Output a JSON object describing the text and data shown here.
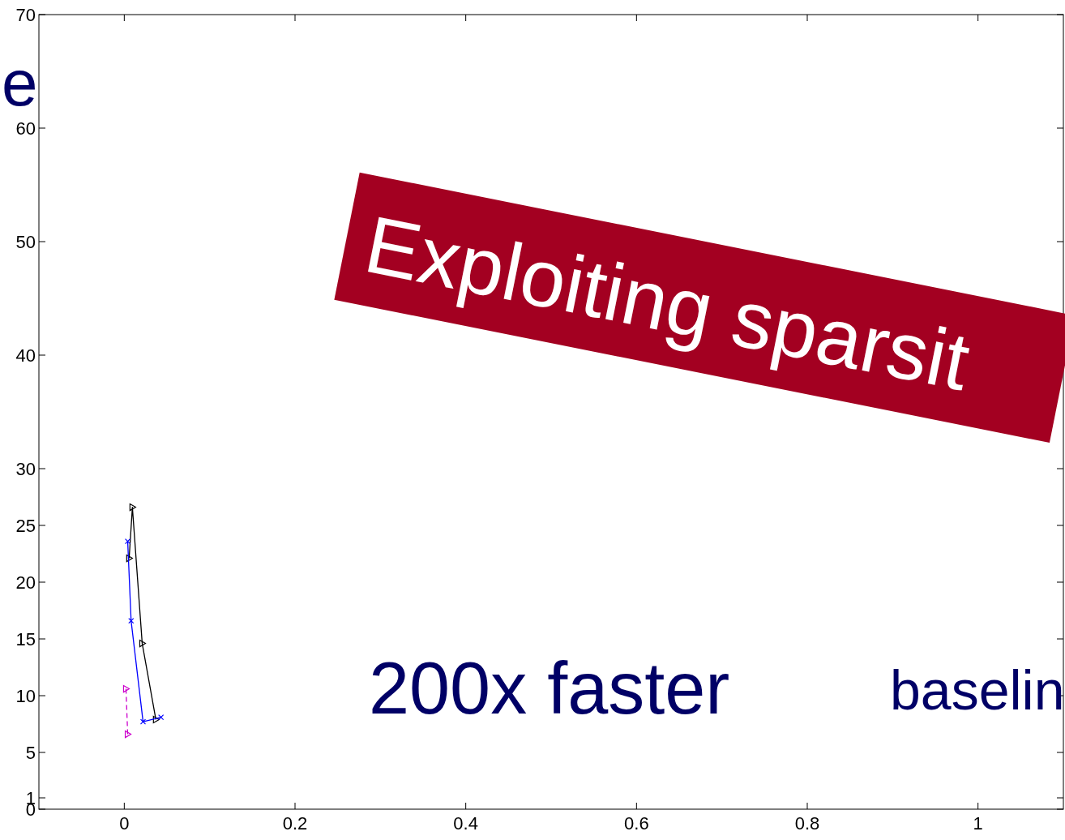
{
  "chart_data": {
    "type": "line",
    "xlim": [
      -0.1,
      1.1
    ],
    "xticks": [
      0,
      0.2,
      0.4,
      0.6,
      0.8,
      1
    ],
    "ylim": [
      0,
      70
    ],
    "yticks": [
      0,
      1,
      5,
      10,
      15,
      20,
      25,
      30,
      40,
      50,
      60,
      70
    ],
    "grid": false,
    "series": [
      {
        "color": "#000000",
        "marker": "triangle",
        "line_style": "solid",
        "x": [
          0.0057,
          0.0095,
          0.021,
          0.037
        ],
        "values": [
          22.1,
          26.6,
          14.6,
          7.9
        ]
      },
      {
        "color": "#0000ff",
        "marker": "cross",
        "line_style": "solid",
        "x": [
          0.004,
          0.008,
          0.022,
          0.043
        ],
        "values": [
          23.6,
          16.6,
          7.7,
          8.1
        ]
      },
      {
        "color": "#cc00cc",
        "marker": "triangle",
        "line_style": "dashed",
        "x": [
          0.002,
          0.004
        ],
        "values": [
          10.6,
          6.6
        ]
      }
    ],
    "annotations": [
      "e",
      "Exploiting sparsit",
      "200x faster",
      "baselin"
    ]
  }
}
